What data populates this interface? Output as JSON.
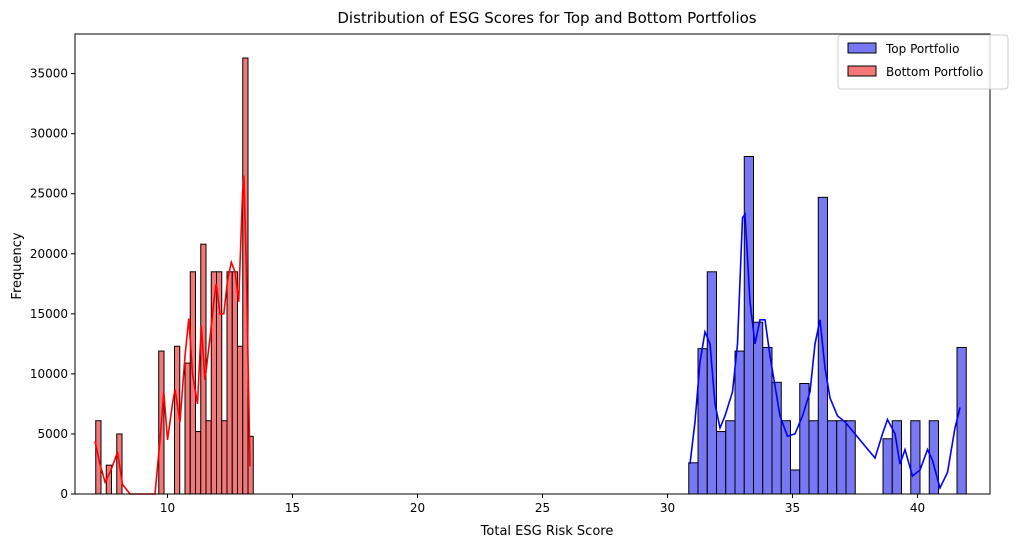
{
  "chart_data": {
    "type": "histogram",
    "title": "Distribution of ESG Scores for Top and Bottom Portfolios",
    "xlabel": "Total ESG Risk Score",
    "ylabel": "Frequency",
    "xlim": [
      6.3,
      42.9
    ],
    "ylim": [
      0,
      38300
    ],
    "xticks": [
      10,
      15,
      20,
      25,
      30,
      35,
      40
    ],
    "yticks": [
      0,
      5000,
      10000,
      15000,
      20000,
      25000,
      30000,
      35000
    ],
    "grid": false,
    "legend_position": "top-right",
    "legend": [
      "Top Portfolio",
      "Bottom Portfolio"
    ],
    "series": [
      {
        "name": "Top Portfolio",
        "color": "#0000ff",
        "fill": "#7878f5",
        "bin_width": 0.37,
        "bins": [
          [
            30.85,
            2600
          ],
          [
            31.22,
            12100
          ],
          [
            31.59,
            18500
          ],
          [
            31.96,
            5200
          ],
          [
            32.33,
            6100
          ],
          [
            32.7,
            11900
          ],
          [
            33.07,
            28100
          ],
          [
            33.44,
            14300
          ],
          [
            33.81,
            12200
          ],
          [
            34.18,
            9300
          ],
          [
            34.55,
            6100
          ],
          [
            34.92,
            2000
          ],
          [
            35.29,
            9200
          ],
          [
            35.66,
            6100
          ],
          [
            36.03,
            24700
          ],
          [
            36.4,
            6100
          ],
          [
            36.77,
            6100
          ],
          [
            37.14,
            6100
          ],
          [
            37.51,
            0
          ],
          [
            37.88,
            0
          ],
          [
            38.25,
            0
          ],
          [
            38.62,
            4600
          ],
          [
            38.99,
            6100
          ],
          [
            39.36,
            0
          ],
          [
            39.73,
            6100
          ],
          [
            40.1,
            0
          ],
          [
            40.47,
            6100
          ],
          [
            40.84,
            0
          ],
          [
            41.21,
            0
          ],
          [
            41.58,
            12200
          ]
        ],
        "kde": [
          [
            30.9,
            2500
          ],
          [
            31.1,
            6000
          ],
          [
            31.3,
            11000
          ],
          [
            31.5,
            13500
          ],
          [
            31.7,
            12500
          ],
          [
            31.9,
            7500
          ],
          [
            32.1,
            5500
          ],
          [
            32.3,
            6500
          ],
          [
            32.6,
            8500
          ],
          [
            32.8,
            12500
          ],
          [
            33.0,
            23000
          ],
          [
            33.1,
            23300
          ],
          [
            33.3,
            16000
          ],
          [
            33.5,
            12500
          ],
          [
            33.7,
            14500
          ],
          [
            33.9,
            14500
          ],
          [
            34.1,
            11500
          ],
          [
            34.3,
            9000
          ],
          [
            34.5,
            6500
          ],
          [
            34.8,
            4800
          ],
          [
            35.1,
            5000
          ],
          [
            35.4,
            6500
          ],
          [
            35.7,
            8500
          ],
          [
            35.9,
            12500
          ],
          [
            36.1,
            14500
          ],
          [
            36.3,
            10500
          ],
          [
            36.5,
            8000
          ],
          [
            36.8,
            6500
          ],
          [
            37.1,
            6000
          ],
          [
            37.5,
            5000
          ],
          [
            37.9,
            4000
          ],
          [
            38.3,
            3000
          ],
          [
            38.6,
            5000
          ],
          [
            38.8,
            6200
          ],
          [
            39.1,
            5000
          ],
          [
            39.3,
            2500
          ],
          [
            39.5,
            3700
          ],
          [
            39.8,
            1500
          ],
          [
            40.1,
            2000
          ],
          [
            40.4,
            3700
          ],
          [
            40.6,
            2800
          ],
          [
            40.9,
            500
          ],
          [
            41.2,
            1800
          ],
          [
            41.5,
            5500
          ],
          [
            41.7,
            7200
          ]
        ]
      },
      {
        "name": "Bottom Portfolio",
        "color": "#ff0000",
        "fill": "#f57878",
        "bin_width": 0.21,
        "bins": [
          [
            7.13,
            6100
          ],
          [
            7.55,
            2400
          ],
          [
            7.97,
            5000
          ],
          [
            9.65,
            11900
          ],
          [
            10.28,
            12300
          ],
          [
            10.7,
            10900
          ],
          [
            10.91,
            18500
          ],
          [
            11.12,
            5200
          ],
          [
            11.33,
            20800
          ],
          [
            11.54,
            6100
          ],
          [
            11.75,
            18500
          ],
          [
            11.96,
            18500
          ],
          [
            12.17,
            6100
          ],
          [
            12.38,
            18500
          ],
          [
            12.59,
            18500
          ],
          [
            12.8,
            12300
          ],
          [
            13.01,
            36300
          ],
          [
            13.22,
            4800
          ]
        ],
        "kde": [
          [
            7.1,
            4400
          ],
          [
            7.3,
            2500
          ],
          [
            7.5,
            1000
          ],
          [
            7.7,
            1800
          ],
          [
            7.9,
            2900
          ],
          [
            8.0,
            3500
          ],
          [
            8.2,
            800
          ],
          [
            8.5,
            0
          ],
          [
            9.5,
            0
          ],
          [
            9.7,
            4500
          ],
          [
            9.85,
            8500
          ],
          [
            10.0,
            4500
          ],
          [
            10.2,
            7500
          ],
          [
            10.3,
            8700
          ],
          [
            10.5,
            6000
          ],
          [
            10.7,
            11500
          ],
          [
            10.85,
            14600
          ],
          [
            11.0,
            10000
          ],
          [
            11.2,
            7500
          ],
          [
            11.35,
            14000
          ],
          [
            11.5,
            9500
          ],
          [
            11.7,
            13000
          ],
          [
            11.85,
            16000
          ],
          [
            11.95,
            17500
          ],
          [
            12.1,
            15000
          ],
          [
            12.25,
            15000
          ],
          [
            12.4,
            17800
          ],
          [
            12.55,
            19300
          ],
          [
            12.7,
            18500
          ],
          [
            12.85,
            16000
          ],
          [
            13.0,
            25000
          ],
          [
            13.05,
            26500
          ],
          [
            13.15,
            19000
          ],
          [
            13.3,
            2300
          ]
        ]
      }
    ]
  }
}
